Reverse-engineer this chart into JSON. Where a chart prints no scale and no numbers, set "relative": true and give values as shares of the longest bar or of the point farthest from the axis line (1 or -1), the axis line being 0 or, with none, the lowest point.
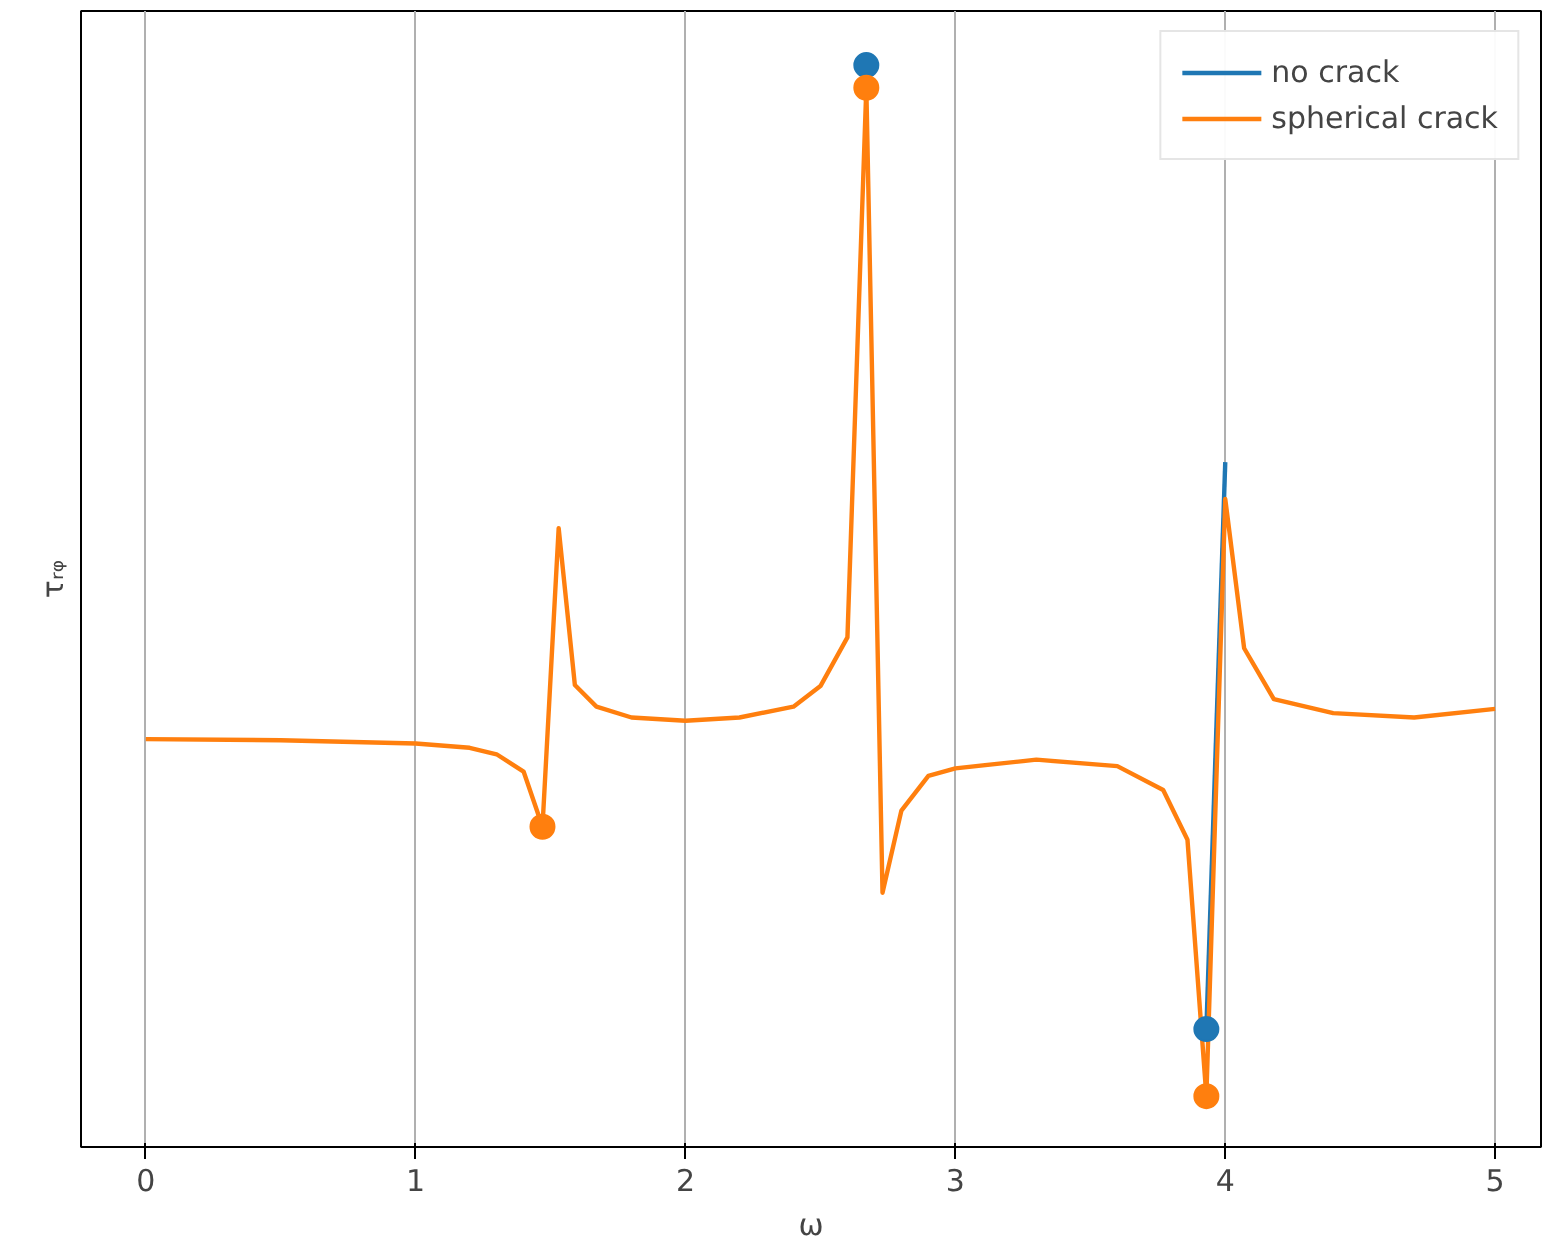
{
  "chart_data": {
    "type": "line",
    "xlabel": "ω",
    "ylabel": "τᵣᵩ",
    "relative": true,
    "xlim": [
      -0.24,
      5.17
    ],
    "xticks": [
      0,
      1,
      2,
      3,
      4,
      5
    ],
    "grid": "x",
    "legend": "top right",
    "tick_labels": "x",
    "marker": "none",
    "series": [
      {
        "name": "no crack",
        "color": "#1f77b4",
        "x": [
          3.93,
          4.0
        ],
        "values": [
          0.109,
          0.633
        ]
      },
      {
        "name": "spherical crack",
        "color": "#ff7f0e",
        "x": [
          0,
          0.5,
          1.0,
          1.2,
          1.3,
          1.4,
          1.47,
          1.53,
          1.59,
          1.67,
          1.8,
          2.0,
          2.2,
          2.4,
          2.5,
          2.6,
          2.67,
          2.73,
          2.8,
          2.9,
          3.0,
          3.3,
          3.6,
          3.77,
          3.86,
          3.93,
          4.0,
          4.07,
          4.18,
          4.4,
          4.7,
          5.0
        ],
        "values": [
          0.377,
          0.376,
          0.373,
          0.369,
          0.363,
          0.347,
          0.296,
          0.572,
          0.427,
          0.407,
          0.397,
          0.394,
          0.397,
          0.407,
          0.426,
          0.471,
          0.979,
          0.235,
          0.311,
          0.343,
          0.35,
          0.358,
          0.352,
          0.33,
          0.284,
          0.047,
          0.599,
          0.461,
          0.414,
          0.401,
          0.397,
          0.405
        ]
      },
      {
        "type": "scatter",
        "marker": "circle",
        "color": "#1f77b4",
        "x": [
          2.67,
          3.93
        ],
        "values": [
          1.0,
          0.109
        ]
      },
      {
        "type": "scatter",
        "marker": "circle",
        "color": "#ff7f0e",
        "x": [
          1.47,
          2.67,
          3.93
        ],
        "values": [
          0.296,
          0.979,
          0.047
        ]
      }
    ]
  }
}
